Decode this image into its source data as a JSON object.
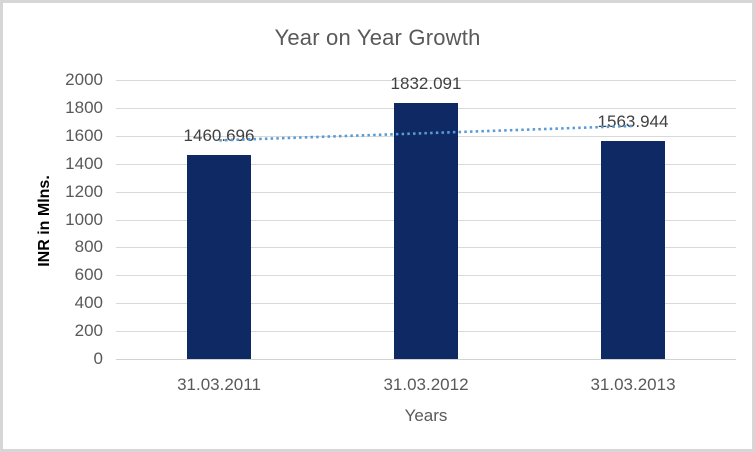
{
  "frame": {
    "background": "#ffffff",
    "border_color": "#d6d6d6"
  },
  "chart_data": {
    "type": "bar",
    "title": "Year on Year Growth",
    "categories": [
      "31.03.2011",
      "31.03.2012",
      "31.03.2013"
    ],
    "values": [
      1460.696,
      1832.091,
      1563.944
    ],
    "data_labels": [
      "1460.696",
      "1832.091",
      "1563.944"
    ],
    "xlabel": "Years",
    "ylabel": "INR in Mlns.",
    "ylim": [
      0,
      2000
    ],
    "yticks": [
      0,
      200,
      400,
      600,
      800,
      1000,
      1200,
      1400,
      1600,
      1800,
      2000
    ],
    "grid": true,
    "legend": "none",
    "trendline": {
      "type": "linear",
      "style": "dotted"
    },
    "colors": {
      "bar": "#0e2963",
      "trendline": "#5b9bd5",
      "gridline": "#d9d9d9",
      "axis_line": "#d2d2d2",
      "title_text": "#595959",
      "tick_text": "#595959",
      "data_label_text": "#404040",
      "category_text": "#595959",
      "xlabel_text": "#595959",
      "ylabel_text": "#000000"
    }
  }
}
